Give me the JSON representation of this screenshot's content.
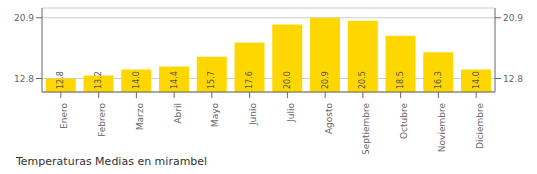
{
  "chart_data": {
    "type": "bar",
    "title": "Temperaturas Medias en mirambel",
    "categories": [
      "Enero",
      "Febrero",
      "Marzo",
      "Abril",
      "Mayo",
      "Junio",
      "Julio",
      "Agosto",
      "Septiembre",
      "Octubre",
      "Noviembre",
      "Diciembre"
    ],
    "values": [
      12.8,
      13.2,
      14.0,
      14.4,
      15.7,
      17.6,
      20.0,
      20.9,
      20.5,
      18.5,
      16.3,
      14.0
    ],
    "value_labels": [
      "12.8",
      "13.2",
      "14.0",
      "14.4",
      "15.7",
      "17.6",
      "20.0",
      "20.9",
      "20.5",
      "18.5",
      "16.3",
      "14.0"
    ],
    "color": "#FFD700",
    "ylim": [
      11.0,
      22.2
    ],
    "yticks": [
      12.8,
      20.9
    ],
    "grid": true,
    "data_labels": true
  }
}
